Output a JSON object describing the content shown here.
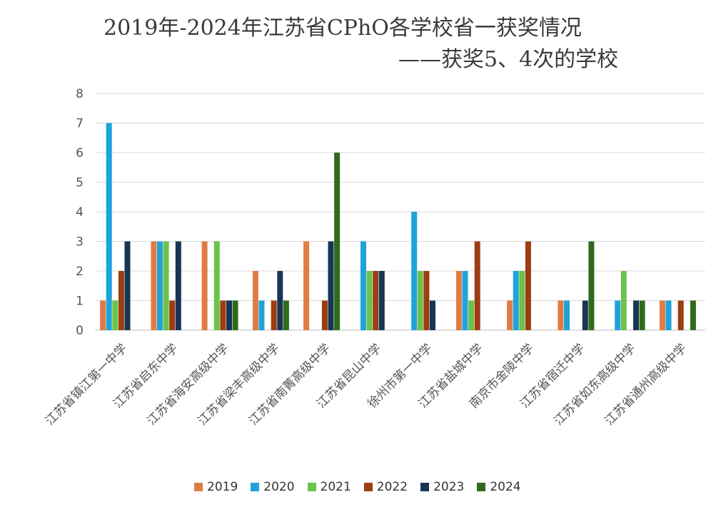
{
  "chart_data": {
    "type": "bar",
    "title": "2019年-2024年江苏省CPhO各学校省一获奖情况",
    "subtitle": "——获奖5、4次的学校",
    "xlabel": "",
    "ylabel": "",
    "ylim": [
      0,
      8
    ],
    "yticks": [
      "0",
      "1",
      "2",
      "3",
      "4",
      "5",
      "6",
      "7",
      "8"
    ],
    "grid": true,
    "legend_position": "bottom",
    "categories": [
      "江苏省镇江第一中学",
      "江苏省启东中学",
      "江苏省海安高级中学",
      "江苏省梁丰高级中学",
      "江苏省南菁高级中学",
      "江苏省昆山中学",
      "徐州市第一中学",
      "江苏省盐城中学",
      "南京市金陵中学",
      "江苏省宿迁中学",
      "江苏省如东高级中学",
      "江苏省通州高级中学"
    ],
    "series": [
      {
        "name": "2019",
        "color": "#E07B45",
        "values": [
          1,
          3,
          3,
          2,
          3,
          0,
          0,
          2,
          1,
          1,
          0,
          1
        ]
      },
      {
        "name": "2020",
        "color": "#1FA3D9",
        "values": [
          7,
          3,
          0,
          1,
          0,
          3,
          4,
          2,
          2,
          1,
          1,
          1
        ]
      },
      {
        "name": "2021",
        "color": "#6CC24A",
        "values": [
          1,
          3,
          3,
          0,
          0,
          2,
          2,
          1,
          2,
          0,
          2,
          0
        ]
      },
      {
        "name": "2022",
        "color": "#9C3D12",
        "values": [
          2,
          1,
          1,
          1,
          1,
          2,
          2,
          3,
          3,
          0,
          0,
          1
        ]
      },
      {
        "name": "2023",
        "color": "#173654",
        "values": [
          3,
          3,
          1,
          2,
          3,
          2,
          1,
          0,
          0,
          1,
          1,
          0
        ]
      },
      {
        "name": "2024",
        "color": "#2E6B1E",
        "values": [
          0,
          0,
          1,
          1,
          6,
          0,
          0,
          0,
          0,
          3,
          1,
          1
        ]
      }
    ]
  }
}
